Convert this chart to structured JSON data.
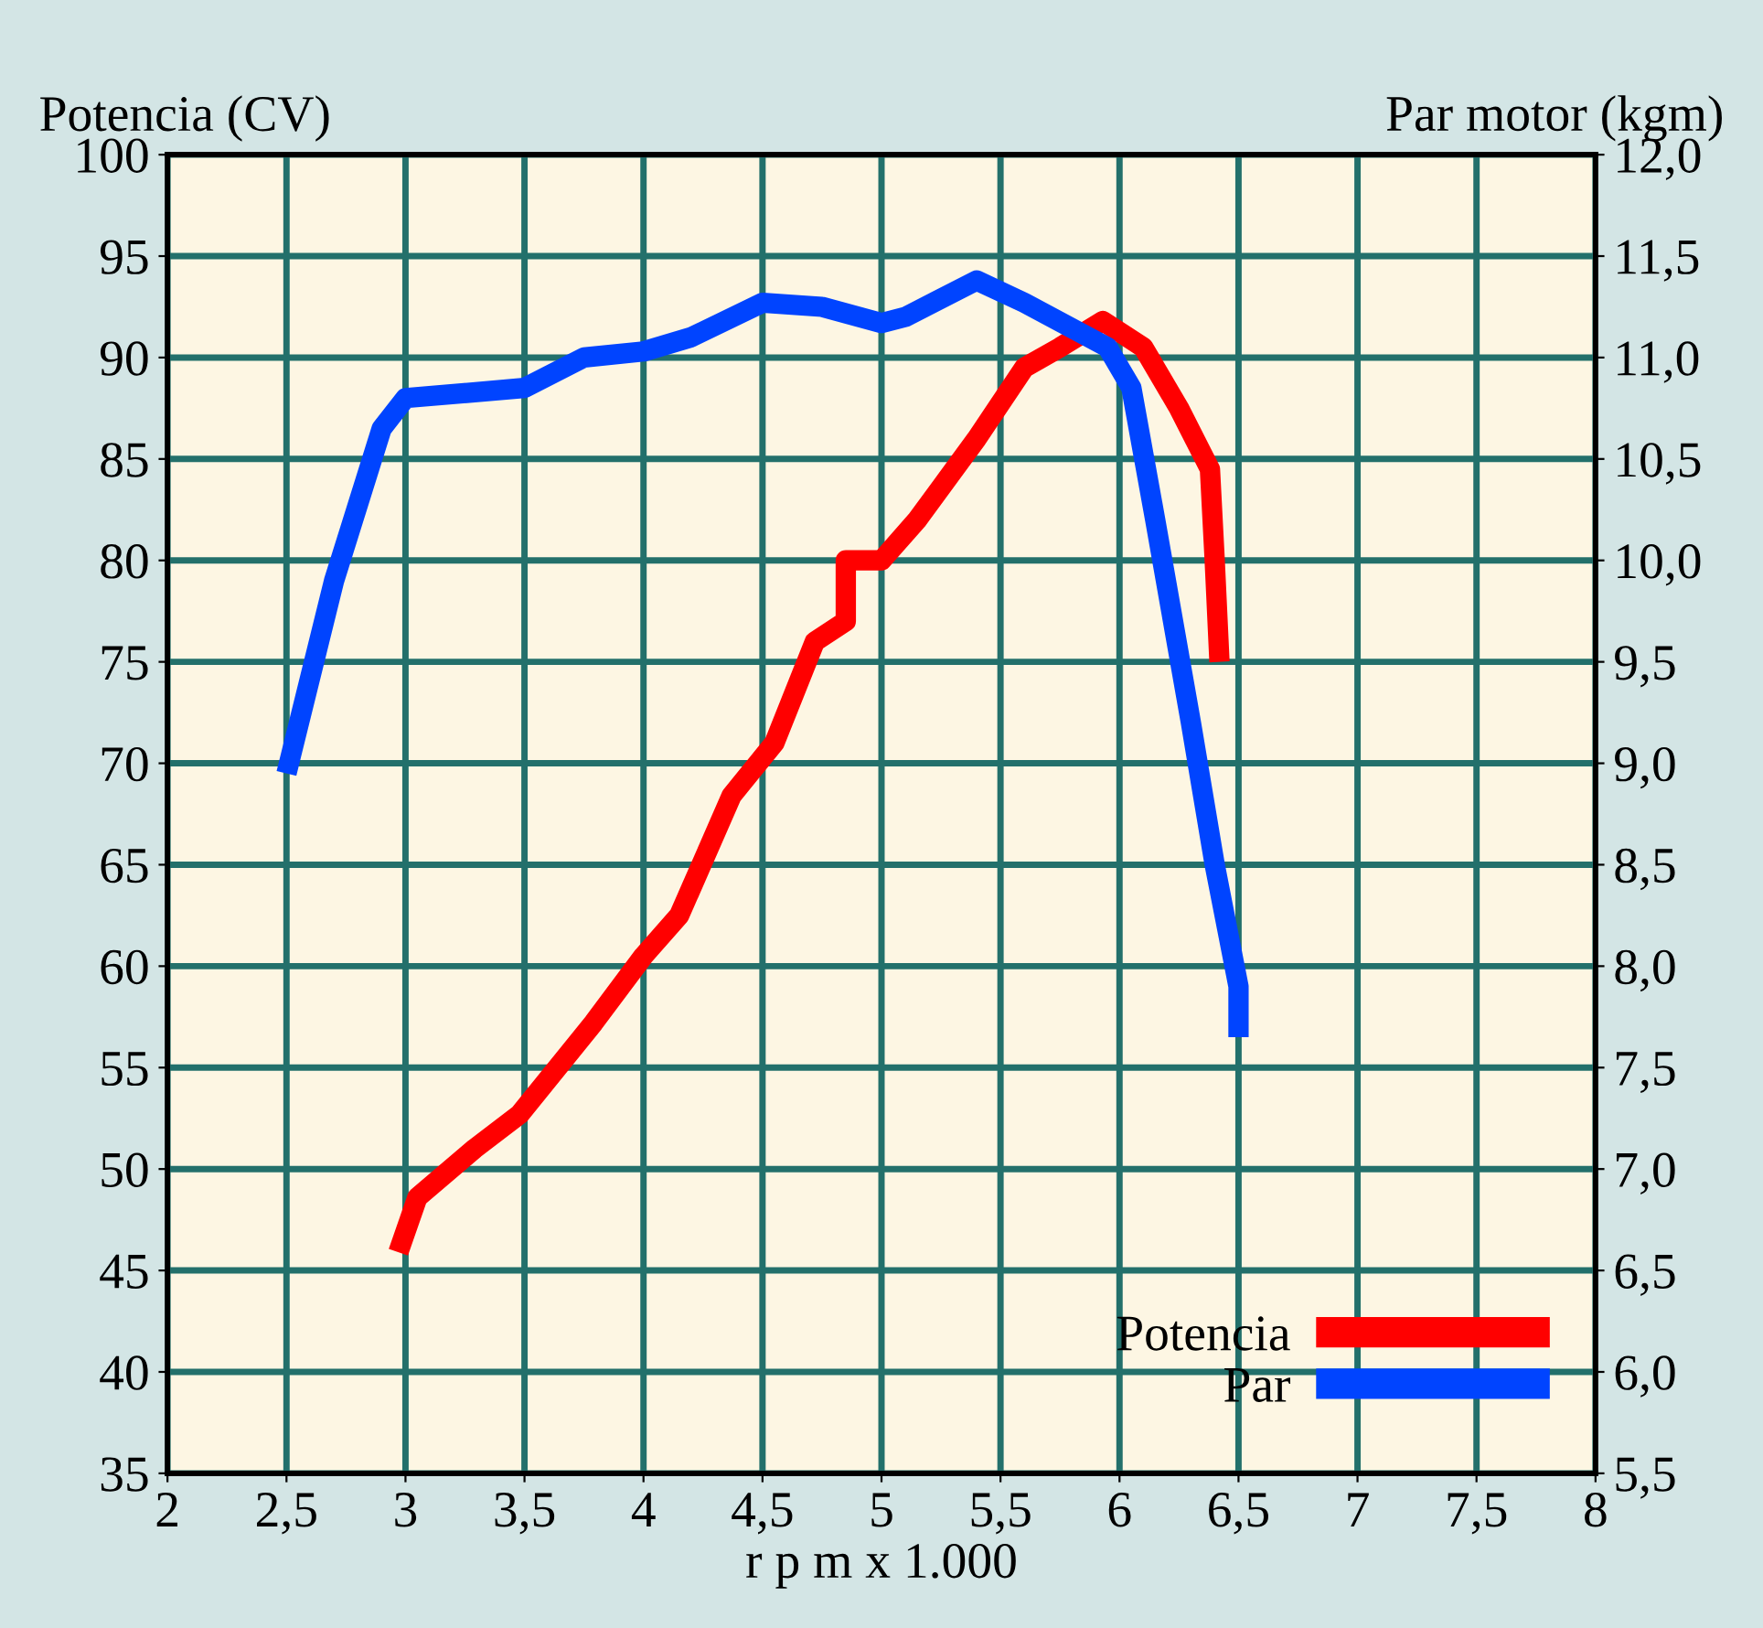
{
  "chart_data": {
    "type": "line",
    "xlabel": "r p m x 1.000",
    "ylabel": "Potencia (CV)",
    "y2label": "Par motor (kgm)",
    "xlim": [
      2,
      8
    ],
    "xticks": [
      2,
      {
        "value": 2.5,
        "label": "2,5"
      },
      3,
      {
        "value": 3.5,
        "label": "3,5"
      },
      4,
      {
        "value": 4.5,
        "label": "4,5"
      },
      5,
      {
        "value": 5.5,
        "label": "5,5"
      },
      6,
      {
        "value": 6.5,
        "label": "6,5"
      },
      7,
      {
        "value": 7.5,
        "label": "7,5"
      },
      8
    ],
    "ylim": [
      35,
      100
    ],
    "yticks": [
      35,
      40,
      45,
      50,
      55,
      60,
      65,
      70,
      75,
      80,
      85,
      90,
      95,
      100
    ],
    "y2lim": [
      5.5,
      12.0
    ],
    "y2ticks": [
      {
        "value": 5.5,
        "label": "5,5"
      },
      {
        "value": 6.0,
        "label": "6,0"
      },
      {
        "value": 6.5,
        "label": "6,5"
      },
      {
        "value": 7.0,
        "label": "7,0"
      },
      {
        "value": 7.5,
        "label": "7,5"
      },
      {
        "value": 8.0,
        "label": "8,0"
      },
      {
        "value": 8.5,
        "label": "8,5"
      },
      {
        "value": 9.0,
        "label": "9,0"
      },
      {
        "value": 9.5,
        "label": "9,5"
      },
      {
        "value": 10.0,
        "label": "10,0"
      },
      {
        "value": 10.5,
        "label": "10,5"
      },
      {
        "value": 11.0,
        "label": "11,0"
      },
      {
        "value": 11.5,
        "label": "11,5"
      },
      {
        "value": 12.0,
        "label": "12,0"
      }
    ],
    "grid": true,
    "legend": "bottom right",
    "marker": "none",
    "line_style": "solid",
    "series": [
      {
        "name": "Potencia",
        "color": "#ff0000",
        "x": [
          2.97,
          3.05,
          3.29,
          3.48,
          3.79,
          4.0,
          4.15,
          4.37,
          4.55,
          4.72,
          4.85,
          4.85,
          5.0,
          5.15,
          5.4,
          5.6,
          5.75,
          5.93,
          6.1,
          6.25,
          6.38,
          6.4,
          6.42
        ],
        "values": [
          45.9,
          48.6,
          51,
          52.7,
          57.2,
          60.5,
          62.5,
          68.4,
          71,
          76,
          77,
          80,
          80,
          82,
          86,
          89.5,
          90.5,
          91.8,
          90.5,
          87.5,
          84.5,
          80,
          75
        ]
      },
      {
        "name": "Par",
        "color": "#0044ff",
        "axis": "y2",
        "x": [
          2.5,
          2.7,
          2.9,
          3.0,
          3.5,
          3.75,
          4.0,
          4.2,
          4.5,
          4.75,
          5.0,
          5.1,
          5.4,
          5.6,
          5.95,
          6.05,
          6.15,
          6.3,
          6.4,
          6.5,
          6.5
        ],
        "values": [
          8.95,
          9.9,
          10.65,
          10.8,
          10.85,
          11.0,
          11.03,
          11.1,
          11.27,
          11.25,
          11.17,
          11.2,
          11.38,
          11.27,
          11.05,
          10.85,
          10.2,
          9.2,
          8.5,
          7.9,
          7.65
        ]
      }
    ]
  }
}
